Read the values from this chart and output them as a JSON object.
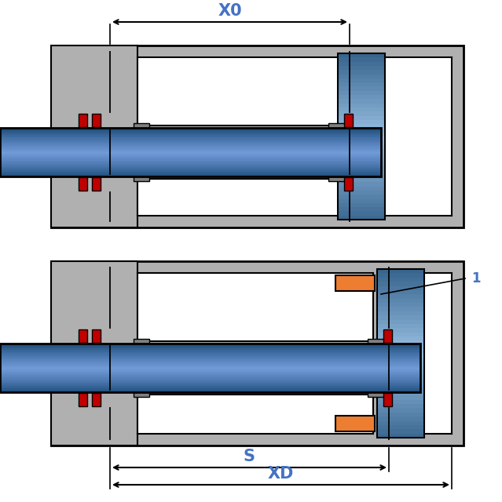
{
  "bg_color": "#ffffff",
  "gray_color": "#b0b0b0",
  "dark_gray": "#808080",
  "blue_shaft": "#4472c4",
  "blue_light": "#9dc3e6",
  "blue_dark": "#1f4e79",
  "red_seal": "#c00000",
  "orange_spring": "#ed7d31",
  "white_color": "#ffffff",
  "black_color": "#000000",
  "dim_blue": "#4472c4",
  "label_x0": "X0",
  "label_s": "S",
  "label_xd": "XD",
  "label_1": "1"
}
